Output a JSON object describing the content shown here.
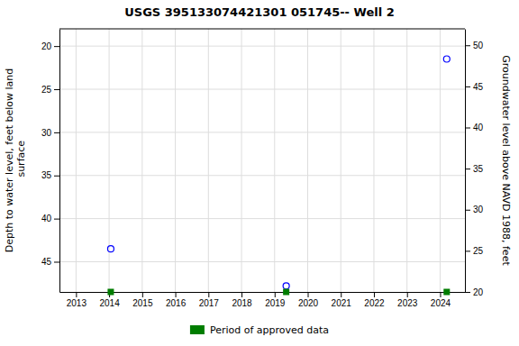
{
  "chart_data": {
    "type": "scatter",
    "title": "USGS 395133074421301 051745-- Well 2",
    "ylabel": "Depth to water level, feet below land\n surface",
    "y2label": "Groundwater level above NAVD 1988, feet",
    "xlim": [
      2012.5,
      2024.75
    ],
    "xticks": [
      2013,
      2014,
      2015,
      2016,
      2017,
      2018,
      2019,
      2020,
      2021,
      2022,
      2023,
      2024
    ],
    "ylim": [
      48.5,
      18.0
    ],
    "yticks": [
      20,
      25,
      30,
      35,
      40,
      45
    ],
    "y2lim": [
      20.0,
      52.0
    ],
    "y2ticks": [
      20,
      25,
      30,
      35,
      40,
      45,
      50
    ],
    "grid": true,
    "legend": "bottom",
    "series": [
      {
        "type": "scatter",
        "marker": "circle",
        "color": "blue",
        "x": [
          2014.05,
          2019.35,
          2024.2
        ],
        "values": [
          43.5,
          47.8,
          21.5
        ]
      },
      {
        "type": "rug",
        "marker": "square",
        "color": "#007d00",
        "name": "Period of approved data",
        "x": [
          2014.05,
          2019.35,
          2024.2
        ],
        "values": [
          48.5,
          48.5,
          48.5
        ]
      }
    ]
  }
}
